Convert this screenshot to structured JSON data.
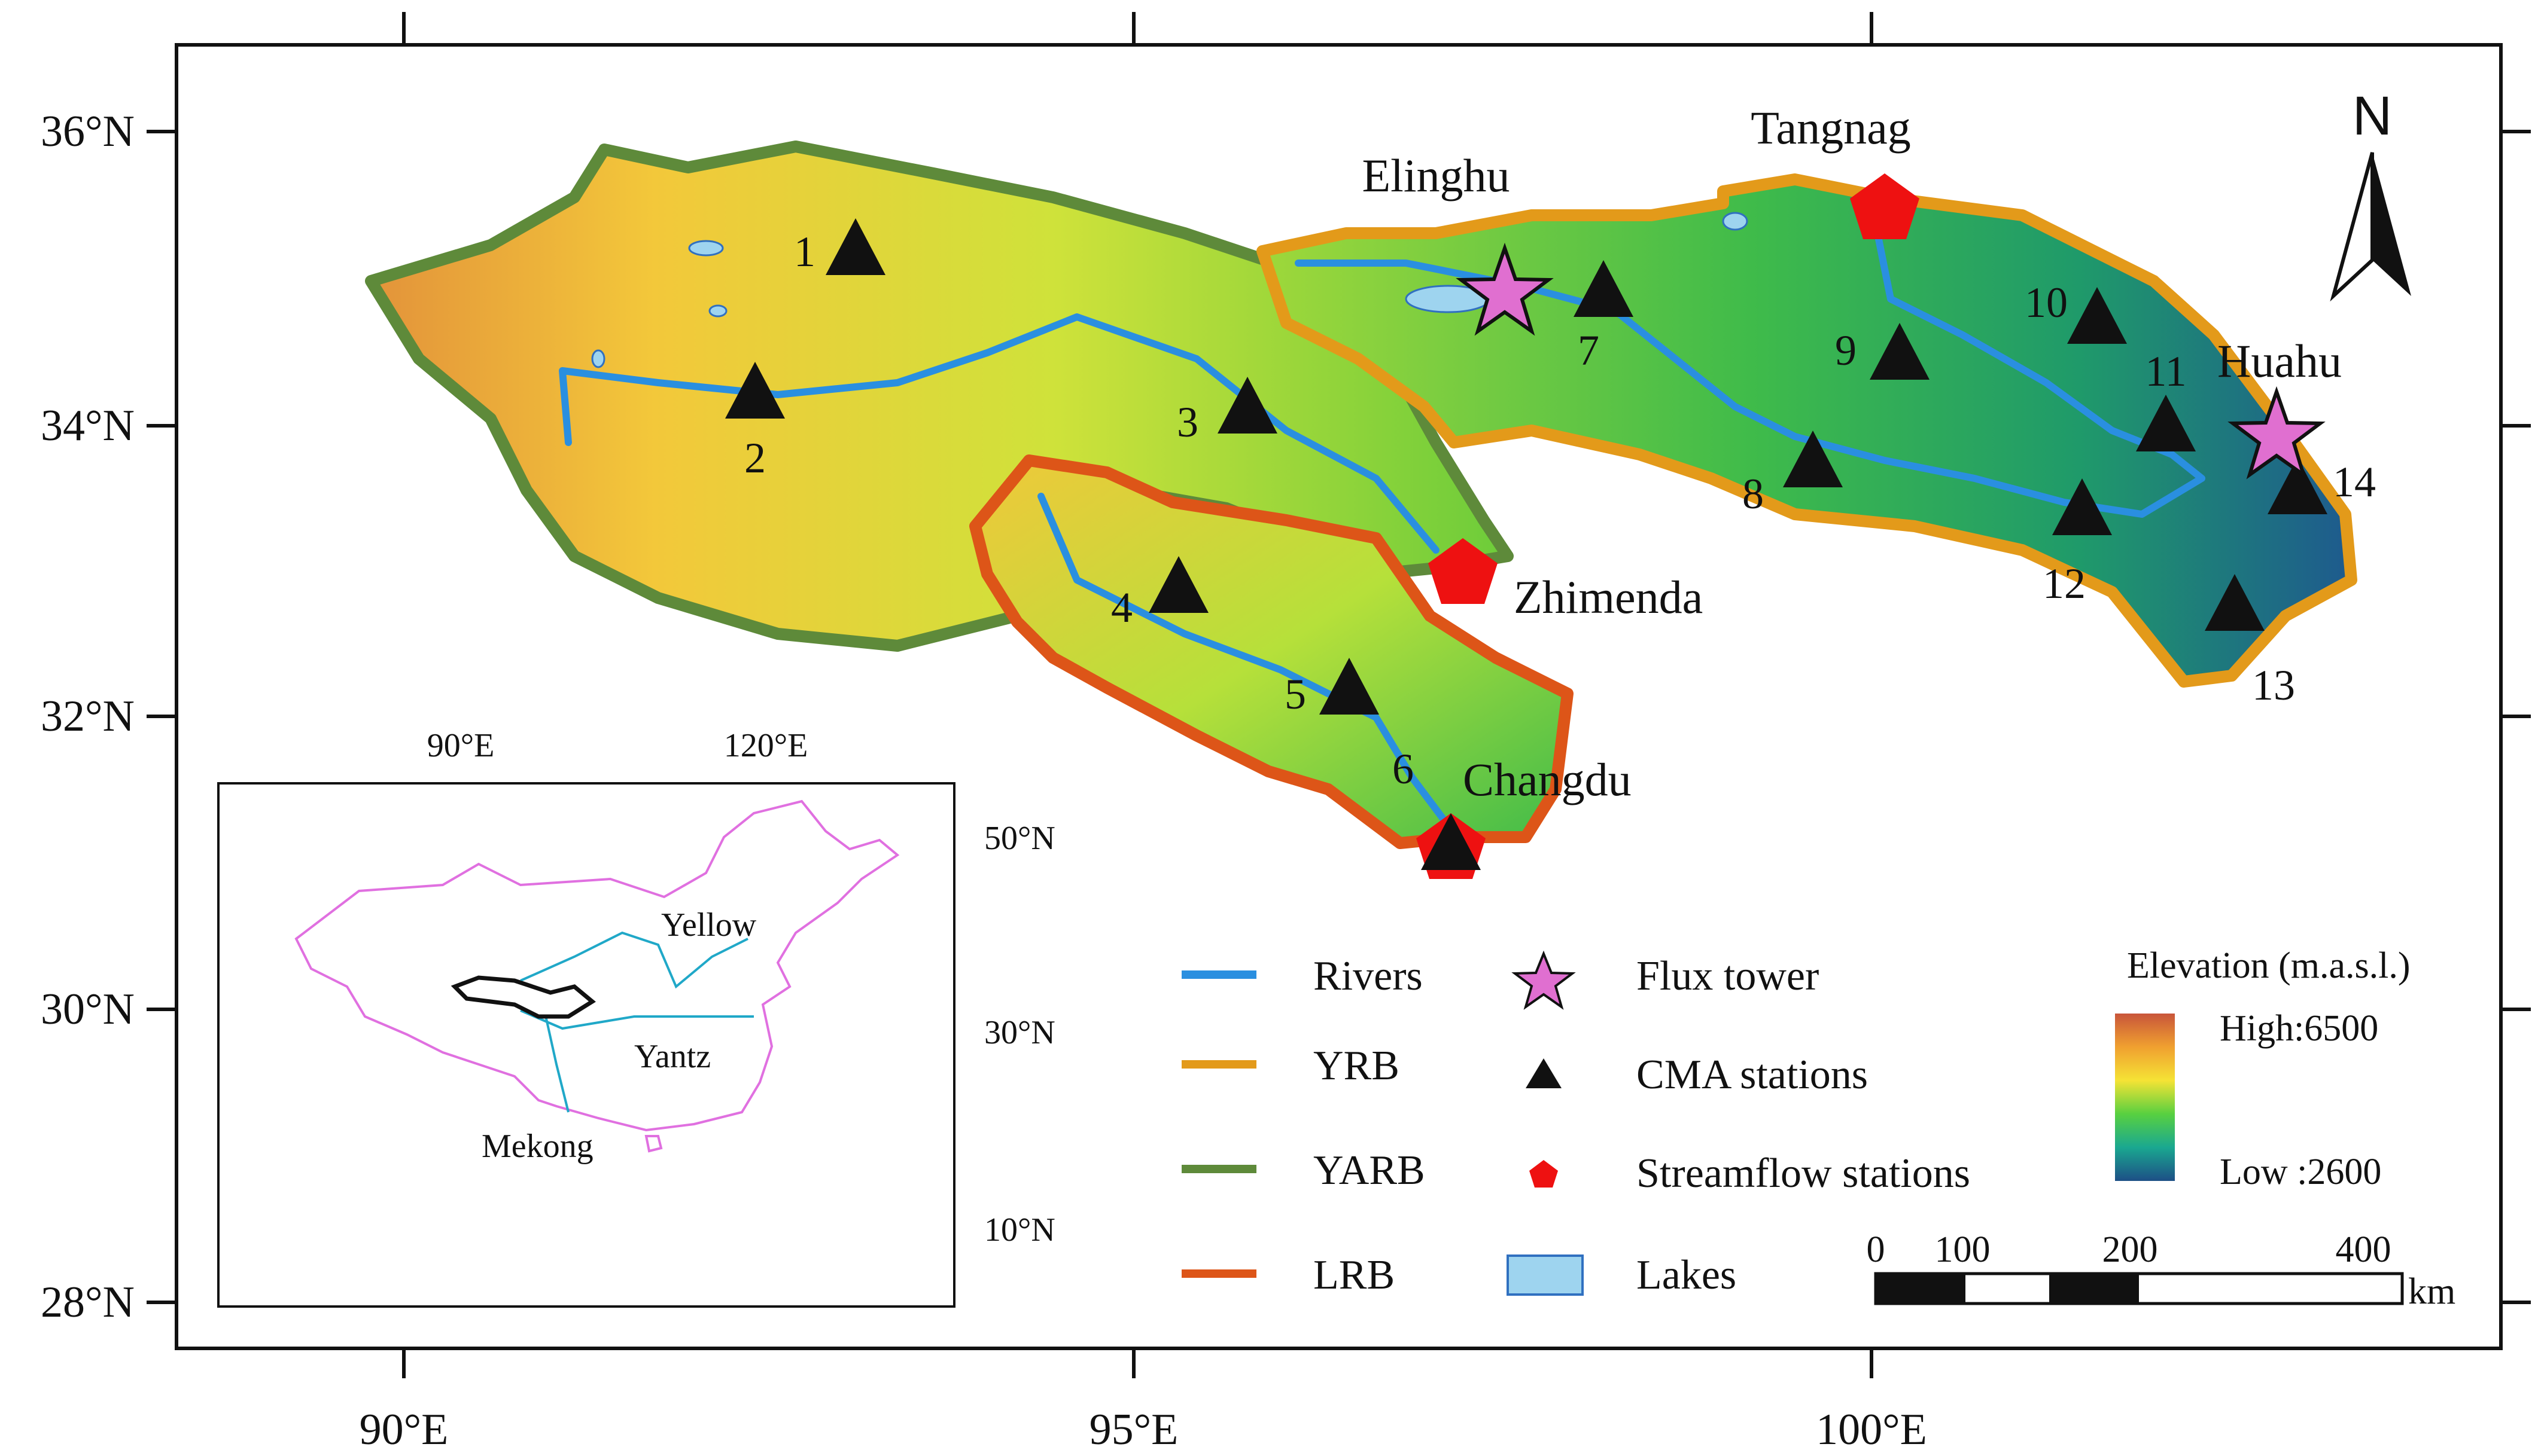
{
  "axes": {
    "x_ticks": [
      "90°E",
      "95°E",
      "100°E"
    ],
    "y_ticks": [
      "36°N",
      "34°N",
      "32°N",
      "30°N",
      "28°N"
    ]
  },
  "north_arrow": "N",
  "places": {
    "elinghu": "Elinghu",
    "tangnag": "Tangnag",
    "huahu": "Huahu",
    "zhimenda": "Zhimenda",
    "changdu": "Changdu"
  },
  "stations": [
    "1",
    "2",
    "3",
    "4",
    "5",
    "6",
    "7",
    "8",
    "9",
    "10",
    "11",
    "12",
    "13",
    "14"
  ],
  "legend": {
    "rivers": "Rivers",
    "yrb": "YRB",
    "yarb": "YARB",
    "lrb": "LRB",
    "flux": "Flux tower",
    "cma": "CMA stations",
    "streamflow": "Streamflow stations",
    "lakes": "Lakes",
    "elev_title": "Elevation (m.a.s.l.)",
    "elev_high": "High:6500",
    "elev_low": "Low :2600"
  },
  "scalebar": {
    "t0": "0",
    "t100": "100",
    "t200": "200",
    "t400": "400",
    "unit": "km"
  },
  "inset": {
    "x_ticks": [
      "90°E",
      "120°E"
    ],
    "y_ticks": [
      "50°N",
      "30°N",
      "10°N"
    ],
    "yellow": "Yellow",
    "yantz": "Yantz",
    "mekong": "Mekong"
  },
  "colors": {
    "river": "#2a8fe0",
    "yrb": "#e39a1a",
    "yarb": "#5e8a3a",
    "lrb": "#dd5518",
    "flux": "#e06fd0",
    "station": "#111111",
    "streamflow": "#ee1111",
    "lake": "#9ed4ef",
    "china_border": "#e070e0",
    "inset_river": "#20a8c8"
  }
}
